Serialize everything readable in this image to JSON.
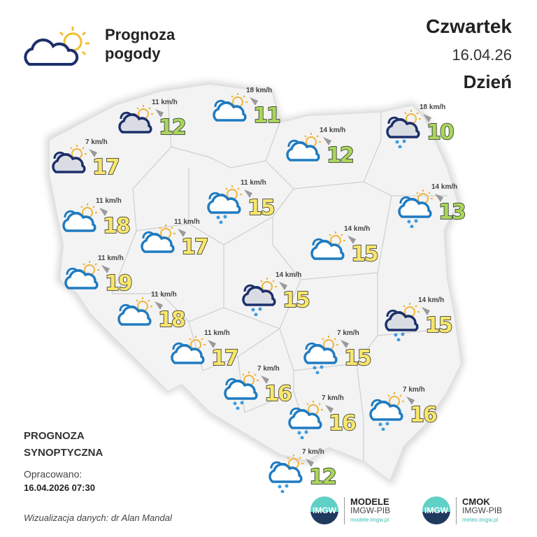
{
  "header": {
    "title_line1": "Prognoza",
    "title_line2": "pogody",
    "day": "Czwartek",
    "date": "16.04.26",
    "period": "Dzień"
  },
  "colors": {
    "warm_temp": "#f7e66b",
    "cool_temp": "#a9d65b",
    "cloud_light": "#1f7bc1",
    "cloud_dark": "#1c2f6b",
    "sun": "#f0b43c",
    "rain": "#3d9be0",
    "map_fill": "#f2f2f2"
  },
  "stations": [
    {
      "temp": "12",
      "wind": "11 km/h",
      "icon": "dark-cloud-sun"
    },
    {
      "temp": "11",
      "wind": "18 km/h",
      "icon": "cloud-sun"
    },
    {
      "temp": "10",
      "wind": "18 km/h",
      "icon": "dark-cloud-sun-rain"
    },
    {
      "temp": "17",
      "wind": "7 km/h",
      "icon": "dark-cloud-sun"
    },
    {
      "temp": "12",
      "wind": "14 km/h",
      "icon": "cloud-sun"
    },
    {
      "temp": "15",
      "wind": "11 km/h",
      "icon": "cloud-sun-rain"
    },
    {
      "temp": "13",
      "wind": "14 km/h",
      "icon": "cloud-sun-rain"
    },
    {
      "temp": "18",
      "wind": "11 km/h",
      "icon": "cloud-sun"
    },
    {
      "temp": "17",
      "wind": "11 km/h",
      "icon": "cloud-sun"
    },
    {
      "temp": "15",
      "wind": "14 km/h",
      "icon": "cloud-sun"
    },
    {
      "temp": "19",
      "wind": "11 km/h",
      "icon": "cloud-sun"
    },
    {
      "temp": "15",
      "wind": "14 km/h",
      "icon": "dark-cloud-sun-rain"
    },
    {
      "temp": "18",
      "wind": "11 km/h",
      "icon": "cloud-sun"
    },
    {
      "temp": "15",
      "wind": "14 km/h",
      "icon": "dark-cloud-sun-rain"
    },
    {
      "temp": "17",
      "wind": "11 km/h",
      "icon": "cloud-sun"
    },
    {
      "temp": "15",
      "wind": "7 km/h",
      "icon": "cloud-sun-rain"
    },
    {
      "temp": "16",
      "wind": "7 km/h",
      "icon": "cloud-sun-rain"
    },
    {
      "temp": "16",
      "wind": "7 km/h",
      "icon": "cloud-sun-rain"
    },
    {
      "temp": "16",
      "wind": "7 km/h",
      "icon": "cloud-sun-rain"
    },
    {
      "temp": "12",
      "wind": "7 km/h",
      "icon": "cloud-sun-rain"
    }
  ],
  "footer": {
    "synop1": "PROGNOZA",
    "synop2": "SYNOPTYCZNA",
    "prepared_label": "Opracowano:",
    "prepared_date": "16.04.2026 07:30",
    "credit": "Wizualizacja danych: dr Alan Mandal",
    "logo1": {
      "mark": "IMGW",
      "name": "MODELE",
      "org": "IMGW-PIB",
      "url": "modele.imgw.pl"
    },
    "logo2": {
      "mark": "IMGW",
      "name": "CMOK",
      "org": "IMGW-PIB",
      "url": "meteo.imgw.pl"
    }
  }
}
